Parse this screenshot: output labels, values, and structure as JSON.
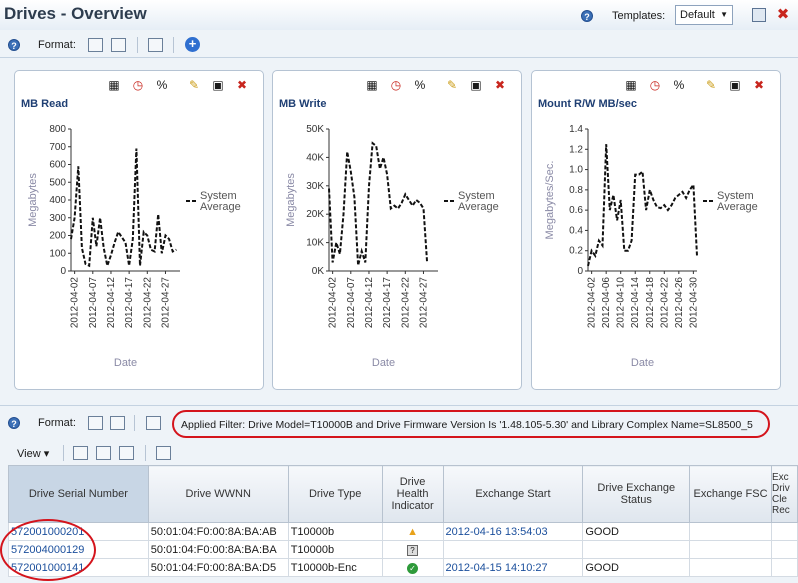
{
  "header": {
    "title": "Drives - Overview",
    "templates_label": "Templates:",
    "template_value": "Default"
  },
  "toolbar": {
    "format_label": "Format:"
  },
  "icons": {
    "help": "?",
    "close": "✖",
    "plus": "+"
  },
  "charts": [
    {
      "title": "MB Read",
      "chart_data": {
        "type": "line",
        "title": "MB Read",
        "xlabel": "Date",
        "ylabel": "Megabytes",
        "ylim": [
          0,
          800
        ],
        "yticks": [
          0,
          100,
          200,
          300,
          400,
          500,
          600,
          700,
          800
        ],
        "yticklabels": [
          "0",
          "100",
          "200",
          "300",
          "400",
          "500",
          "600",
          "700",
          "800"
        ],
        "xticklabels": [
          "2012-04-02",
          "2012-04-07",
          "2012-04-12",
          "2012-04-17",
          "2012-04-22",
          "2012-04-27"
        ],
        "xticks": [
          2,
          7,
          12,
          17,
          22,
          27
        ],
        "xlim": [
          1,
          31
        ],
        "series": [
          {
            "name": "System Average",
            "x": [
              1,
              2,
              3,
              4,
              5,
              6,
              7,
              8,
              9,
              10,
              11,
              12,
              13,
              14,
              15,
              16,
              17,
              18,
              19,
              20,
              21,
              22,
              23,
              24,
              25,
              26,
              27,
              28,
              29,
              30
            ],
            "values": [
              180,
              300,
              590,
              130,
              40,
              30,
              300,
              140,
              300,
              130,
              30,
              90,
              160,
              220,
              190,
              160,
              30,
              180,
              690,
              30,
              220,
              200,
              120,
              110,
              320,
              100,
              200,
              180,
              110,
              120
            ]
          }
        ],
        "legend": "right"
      }
    },
    {
      "title": "MB Write",
      "chart_data": {
        "type": "line",
        "title": "MB Write",
        "xlabel": "Date",
        "ylabel": "Megabytes",
        "ylim": [
          0,
          50000
        ],
        "yticks": [
          0,
          10000,
          20000,
          30000,
          40000,
          50000
        ],
        "yticklabels": [
          "0K",
          "10K",
          "20K",
          "30K",
          "40K",
          "50K"
        ],
        "xticklabels": [
          "2012-04-02",
          "2012-04-07",
          "2012-04-12",
          "2012-04-17",
          "2012-04-22",
          "2012-04-27"
        ],
        "xticks": [
          2,
          7,
          12,
          17,
          22,
          27
        ],
        "xlim": [
          1,
          31
        ],
        "series": [
          {
            "name": "System Average",
            "x": [
              1,
              2,
              3,
              4,
              5,
              6,
              7,
              8,
              9,
              10,
              11,
              12,
              13,
              14,
              15,
              16,
              17,
              18,
              19,
              20,
              21,
              22,
              23,
              24,
              25,
              26,
              27,
              28
            ],
            "values": [
              29000,
              3000,
              10000,
              6000,
              20000,
              42000,
              35000,
              26000,
              2000,
              7000,
              3000,
              30000,
              45000,
              44000,
              36000,
              40000,
              34000,
              22000,
              23000,
              22000,
              24000,
              27000,
              25000,
              23000,
              25000,
              24000,
              22000,
              3000
            ]
          }
        ],
        "legend": "right"
      }
    },
    {
      "title": "Mount R/W MB/sec",
      "chart_data": {
        "type": "line",
        "title": "Mount R/W MB/sec",
        "xlabel": "Date",
        "ylabel": "Megabytes/Sec.",
        "ylim": [
          0,
          1.4
        ],
        "yticks": [
          0,
          0.2,
          0.4,
          0.6,
          0.8,
          1.0,
          1.2,
          1.4
        ],
        "yticklabels": [
          "0",
          "0.2",
          "0.4",
          "0.6",
          "0.8",
          "1.0",
          "1.2",
          "1.4"
        ],
        "xticklabels": [
          "2012-04-02",
          "2012-04-06",
          "2012-04-10",
          "2012-04-14",
          "2012-04-18",
          "2012-04-22",
          "2012-04-26",
          "2012-04-30"
        ],
        "xticks": [
          2,
          6,
          10,
          14,
          18,
          22,
          26,
          30
        ],
        "xlim": [
          1,
          31
        ],
        "series": [
          {
            "name": "System Average",
            "x": [
              1,
              2,
              3,
              4,
              5,
              6,
              7,
              8,
              9,
              10,
              11,
              12,
              13,
              14,
              15,
              16,
              17,
              18,
              19,
              20,
              21,
              22,
              23,
              24,
              25,
              26,
              27,
              28,
              29,
              30,
              31
            ],
            "values": [
              0.05,
              0.2,
              0.15,
              0.3,
              0.25,
              1.25,
              0.6,
              0.75,
              0.5,
              0.7,
              0.2,
              0.2,
              0.3,
              0.95,
              0.95,
              0.98,
              0.6,
              0.8,
              0.7,
              0.63,
              0.62,
              0.65,
              0.6,
              0.65,
              0.72,
              0.75,
              0.78,
              0.72,
              0.8,
              0.85,
              0.15
            ]
          }
        ],
        "legend": "right"
      }
    }
  ],
  "legend_label": [
    "System",
    "Average"
  ],
  "filter_text": "Applied Filter: Drive Model=T10000B and Drive Firmware Version Is '1.48.105-5.30' and Library Complex Name=SL8500_5",
  "table": {
    "view_label": "View",
    "columns": [
      "Drive Serial Number",
      "Drive WWNN",
      "Drive Type",
      "Drive Health Indicator",
      "Exchange Start",
      "Drive Exchange Status",
      "Exchange FSC",
      "Exc Driv Cle Rec"
    ],
    "rows": [
      {
        "serial": "572001000201",
        "wwnn": "50:01:04:F0:00:8A:BA:AB",
        "type": "T10000b",
        "health": "warning",
        "exchange_start": "2012-04-16 13:54:03",
        "status": "GOOD",
        "fsc": ""
      },
      {
        "serial": "572004000129",
        "wwnn": "50:01:04:F0:00:8A:BA:BA",
        "type": "T10000b",
        "health": "unknown",
        "exchange_start": "",
        "status": "",
        "fsc": ""
      },
      {
        "serial": "572001000141",
        "wwnn": "50:01:04:F0:00:8A:BA:D5",
        "type": "T10000b-Enc",
        "health": "ok",
        "exchange_start": "2012-04-15 14:10:27",
        "status": "GOOD",
        "fsc": ""
      }
    ]
  }
}
